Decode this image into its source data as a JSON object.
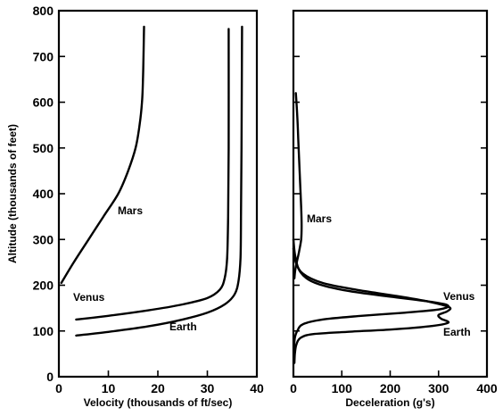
{
  "chart_data": [
    {
      "type": "line",
      "xlabel": "Velocity (thousands of ft/sec)",
      "ylabel": "Altitude (thousands of feet)",
      "xlim": [
        0,
        40
      ],
      "ylim": [
        0,
        800
      ],
      "xticks": [
        "0",
        "10",
        "20",
        "30",
        "40"
      ],
      "yticks": [
        "0",
        "100",
        "200",
        "300",
        "400",
        "500",
        "600",
        "700",
        "800"
      ],
      "grid": false,
      "annotations": [
        "Mars",
        "Venus",
        "Earth"
      ],
      "series": [
        {
          "name": "Mars",
          "points": [
            [
              0.5,
              205
            ],
            [
              3,
              250
            ],
            [
              6,
              300
            ],
            [
              9,
              350
            ],
            [
              12,
              400
            ],
            [
              14,
              450
            ],
            [
              15.5,
              500
            ],
            [
              16.3,
              550
            ],
            [
              16.8,
              600
            ],
            [
              17,
              650
            ],
            [
              17.1,
              700
            ],
            [
              17.2,
              765
            ]
          ]
        },
        {
          "name": "Venus",
          "points": [
            [
              3.5,
              125
            ],
            [
              10,
              133
            ],
            [
              18,
              145
            ],
            [
              25,
              158
            ],
            [
              30,
              172
            ],
            [
              32.5,
              190
            ],
            [
              33.5,
              215
            ],
            [
              34,
              260
            ],
            [
              34.2,
              350
            ],
            [
              34.3,
              500
            ],
            [
              34.3,
              760
            ]
          ]
        },
        {
          "name": "Earth",
          "points": [
            [
              3.5,
              90
            ],
            [
              10,
              98
            ],
            [
              18,
              110
            ],
            [
              25,
              125
            ],
            [
              30,
              140
            ],
            [
              33.5,
              158
            ],
            [
              35.5,
              180
            ],
            [
              36.3,
              210
            ],
            [
              36.7,
              260
            ],
            [
              36.8,
              350
            ],
            [
              36.9,
              500
            ],
            [
              37,
              765
            ]
          ]
        }
      ]
    },
    {
      "type": "line",
      "xlabel": "Deceleration (g's)",
      "ylabel": "",
      "xlim": [
        0,
        400
      ],
      "ylim": [
        0,
        800
      ],
      "xticks": [
        "0",
        "100",
        "200",
        "300",
        "400"
      ],
      "grid": false,
      "annotations": [
        "Mars",
        "Venus",
        "Earth"
      ],
      "series": [
        {
          "name": "Mars",
          "points": [
            [
              5,
              620
            ],
            [
              8,
              570
            ],
            [
              10,
              520
            ],
            [
              12,
              470
            ],
            [
              14,
              420
            ],
            [
              16,
              370
            ],
            [
              17,
              330
            ],
            [
              16,
              300
            ],
            [
              12,
              275
            ],
            [
              8,
              255
            ],
            [
              4,
              235
            ],
            [
              2,
              215
            ]
          ]
        },
        {
          "name": "Venus",
          "points": [
            [
              0,
              300
            ],
            [
              4,
              262
            ],
            [
              15,
              228
            ],
            [
              45,
              205
            ],
            [
              110,
              188
            ],
            [
              200,
              175
            ],
            [
              290,
              163
            ],
            [
              320,
              155
            ],
            [
              300,
              147
            ],
            [
              230,
              140
            ],
            [
              140,
              133
            ],
            [
              60,
              125
            ],
            [
              20,
              115
            ],
            [
              8,
              100
            ],
            [
              3,
              85
            ],
            [
              1,
              60
            ]
          ]
        },
        {
          "name": "Earth",
          "points": [
            [
              0,
              280
            ],
            [
              5,
              250
            ],
            [
              20,
              225
            ],
            [
              60,
              205
            ],
            [
              130,
              190
            ],
            [
              210,
              177
            ],
            [
              280,
              164
            ],
            [
              322,
              152
            ],
            [
              318,
              143
            ],
            [
              300,
              135
            ],
            [
              305,
              127
            ],
            [
              320,
              118
            ],
            [
              280,
              110
            ],
            [
              200,
              103
            ],
            [
              110,
              98
            ],
            [
              40,
              93
            ],
            [
              15,
              85
            ],
            [
              6,
              70
            ],
            [
              3,
              50
            ],
            [
              2,
              30
            ]
          ]
        }
      ]
    }
  ]
}
